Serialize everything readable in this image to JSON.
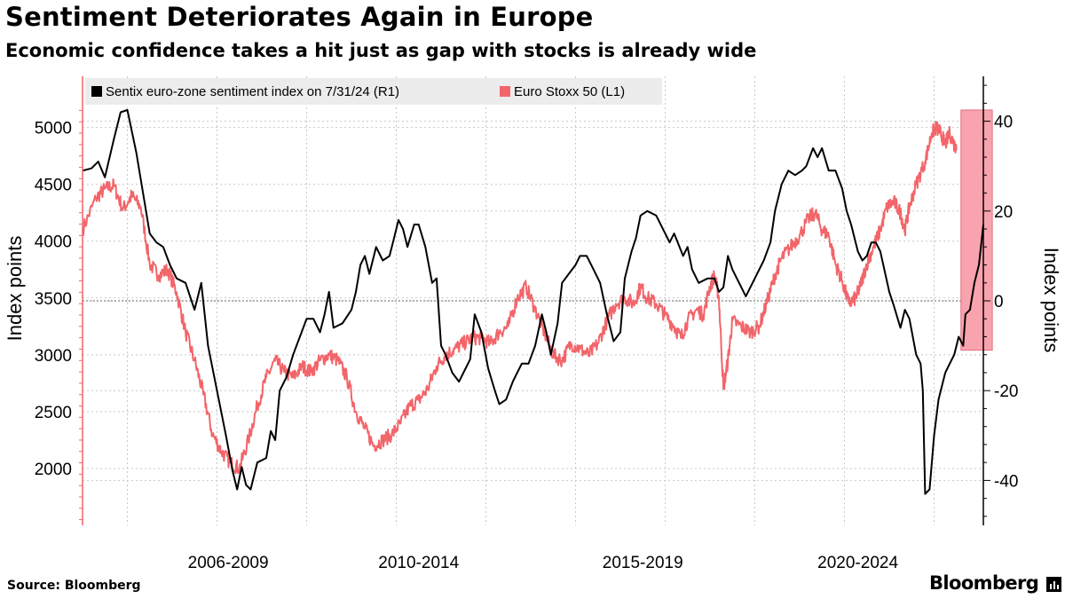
{
  "title": "Sentiment Deteriorates Again in Europe",
  "subtitle": "Economic confidence takes a hit just as gap with stocks is already wide",
  "source": "Source: Bloomberg",
  "brand": "Bloomberg",
  "colors": {
    "sentix": "#000000",
    "stoxx": "#f2656a",
    "highlight": "#f9a3ae",
    "grid": "#c8c8c8",
    "legend_bg": "#ececec"
  },
  "chart_data": {
    "type": "line",
    "x_range": [
      2004.5,
      2024.6
    ],
    "x_tick_labels": [
      {
        "label": "2006-2009",
        "center": 2007.75
      },
      {
        "label": "2010-2014",
        "center": 2012.0
      },
      {
        "label": "2015-2019",
        "center": 2017.0
      },
      {
        "label": "2020-2024",
        "center": 2021.8
      }
    ],
    "x_gridlines": [
      2005.5,
      2007.5,
      2009.5,
      2011.5,
      2013.5,
      2015.5,
      2017.5,
      2019.5,
      2021.5,
      2023.5
    ],
    "left_axis": {
      "label": "Index points",
      "ylim": [
        1500,
        5450
      ],
      "ticks": [
        2000,
        2500,
        3000,
        3500,
        4000,
        4500,
        5000
      ]
    },
    "right_axis": {
      "label": "Index points",
      "ylim": [
        -50,
        50
      ],
      "ticks": [
        -40,
        -20,
        0,
        20,
        40
      ],
      "reference_line": 0
    },
    "legend": [
      {
        "name": "Sentix euro-zone sentiment index on 7/31/24 (R1)",
        "color": "#000000"
      },
      {
        "name": "Euro Stoxx 50 (L1)",
        "color": "#f2656a"
      }
    ],
    "highlight": {
      "x_range": [
        2024.1,
        2024.8
      ],
      "y_range_right": [
        -11,
        42.5
      ]
    },
    "series": [
      {
        "name": "Sentix euro-zone sentiment index on 7/31/24 (R1)",
        "axis": "right",
        "points": [
          [
            2004.5,
            29
          ],
          [
            2004.7,
            29.5
          ],
          [
            2004.85,
            31
          ],
          [
            2005.0,
            27.5
          ],
          [
            2005.2,
            36
          ],
          [
            2005.35,
            42
          ],
          [
            2005.5,
            42.5
          ],
          [
            2005.7,
            33
          ],
          [
            2005.9,
            21
          ],
          [
            2006.0,
            15
          ],
          [
            2006.15,
            13
          ],
          [
            2006.3,
            12
          ],
          [
            2006.45,
            8
          ],
          [
            2006.6,
            5
          ],
          [
            2006.8,
            4
          ],
          [
            2007.0,
            -2
          ],
          [
            2007.15,
            4
          ],
          [
            2007.3,
            -10
          ],
          [
            2007.5,
            -20
          ],
          [
            2007.7,
            -30
          ],
          [
            2007.85,
            -38
          ],
          [
            2007.95,
            -42
          ],
          [
            2008.05,
            -37
          ],
          [
            2008.15,
            -41
          ],
          [
            2008.25,
            -42
          ],
          [
            2008.4,
            -36
          ],
          [
            2008.6,
            -35
          ],
          [
            2008.7,
            -29
          ],
          [
            2008.8,
            -31
          ],
          [
            2008.9,
            -20
          ],
          [
            2009.05,
            -17
          ],
          [
            2009.2,
            -12
          ],
          [
            2009.35,
            -8
          ],
          [
            2009.5,
            -4
          ],
          [
            2009.65,
            -4
          ],
          [
            2009.8,
            -7
          ],
          [
            2009.9,
            -3
          ],
          [
            2010.0,
            2
          ],
          [
            2010.1,
            -6
          ],
          [
            2010.3,
            -5
          ],
          [
            2010.5,
            -2
          ],
          [
            2010.6,
            2
          ],
          [
            2010.7,
            8
          ],
          [
            2010.8,
            10
          ],
          [
            2010.9,
            6
          ],
          [
            2011.05,
            12
          ],
          [
            2011.2,
            9
          ],
          [
            2011.35,
            10
          ],
          [
            2011.45,
            14
          ],
          [
            2011.55,
            18
          ],
          [
            2011.65,
            16
          ],
          [
            2011.75,
            12
          ],
          [
            2011.9,
            17
          ],
          [
            2012.0,
            17
          ],
          [
            2012.15,
            12
          ],
          [
            2012.3,
            4
          ],
          [
            2012.4,
            5
          ],
          [
            2012.5,
            -10
          ],
          [
            2012.6,
            -12
          ],
          [
            2012.75,
            -16
          ],
          [
            2012.9,
            -18
          ],
          [
            2013.0,
            -16
          ],
          [
            2013.15,
            -13
          ],
          [
            2013.25,
            -3
          ],
          [
            2013.4,
            -7
          ],
          [
            2013.55,
            -15
          ],
          [
            2013.7,
            -20
          ],
          [
            2013.8,
            -23
          ],
          [
            2013.95,
            -22
          ],
          [
            2014.1,
            -18
          ],
          [
            2014.2,
            -16
          ],
          [
            2014.3,
            -14
          ],
          [
            2014.45,
            -14
          ],
          [
            2014.6,
            -10
          ],
          [
            2014.75,
            -3
          ],
          [
            2014.85,
            -7
          ],
          [
            2014.95,
            -12
          ],
          [
            2015.1,
            -5
          ],
          [
            2015.2,
            4
          ],
          [
            2015.35,
            6
          ],
          [
            2015.5,
            8
          ],
          [
            2015.6,
            10
          ],
          [
            2015.75,
            10
          ],
          [
            2015.9,
            7
          ],
          [
            2016.05,
            4
          ],
          [
            2016.2,
            -3
          ],
          [
            2016.35,
            -9
          ],
          [
            2016.5,
            -7
          ],
          [
            2016.6,
            5
          ],
          [
            2016.75,
            11
          ],
          [
            2016.85,
            14
          ],
          [
            2016.95,
            19
          ],
          [
            2017.1,
            20
          ],
          [
            2017.3,
            19
          ],
          [
            2017.5,
            15
          ],
          [
            2017.6,
            13
          ],
          [
            2017.7,
            15
          ],
          [
            2017.9,
            10
          ],
          [
            2018.0,
            12
          ],
          [
            2018.1,
            7
          ],
          [
            2018.25,
            4
          ],
          [
            2018.45,
            5
          ],
          [
            2018.6,
            5
          ],
          [
            2018.7,
            2
          ],
          [
            2018.8,
            3
          ],
          [
            2018.9,
            10
          ],
          [
            2019.0,
            7
          ],
          [
            2019.15,
            4
          ],
          [
            2019.3,
            1
          ],
          [
            2019.5,
            5
          ],
          [
            2019.7,
            9
          ],
          [
            2019.85,
            13
          ],
          [
            2019.95,
            20
          ],
          [
            2020.1,
            26
          ],
          [
            2020.25,
            29
          ],
          [
            2020.4,
            28
          ],
          [
            2020.55,
            29
          ],
          [
            2020.65,
            30
          ],
          [
            2020.8,
            34
          ],
          [
            2020.9,
            32
          ],
          [
            2021.0,
            34
          ],
          [
            2021.15,
            29
          ],
          [
            2021.3,
            29
          ],
          [
            2021.45,
            25
          ],
          [
            2021.55,
            20
          ],
          [
            2021.65,
            17
          ],
          [
            2021.8,
            11
          ],
          [
            2021.9,
            9
          ],
          [
            2022.0,
            10
          ],
          [
            2022.1,
            13
          ],
          [
            2022.2,
            13
          ],
          [
            2022.3,
            11
          ],
          [
            2022.5,
            2
          ],
          [
            2022.6,
            -1
          ],
          [
            2022.75,
            -6
          ],
          [
            2022.85,
            -2
          ],
          [
            2022.95,
            -4
          ],
          [
            2023.1,
            -12
          ],
          [
            2023.2,
            -14
          ],
          [
            2023.25,
            -20
          ],
          [
            2023.3,
            -43
          ],
          [
            2023.4,
            -42
          ],
          [
            2023.5,
            -30
          ],
          [
            2023.6,
            -22
          ],
          [
            2023.75,
            -16
          ],
          [
            2023.85,
            -14
          ],
          [
            2023.95,
            -12
          ],
          [
            2024.05,
            -8
          ],
          [
            2024.15,
            -10
          ],
          [
            2024.2,
            -3
          ],
          [
            2024.3,
            -2
          ],
          [
            2024.4,
            4
          ],
          [
            2024.5,
            8
          ],
          [
            2024.6,
            17
          ]
        ]
      },
      {
        "name": "Euro Stoxx 50 (L1)",
        "axis": "left",
        "points": [
          [
            2004.5,
            4100
          ],
          [
            2004.8,
            4380
          ],
          [
            2005.0,
            4460
          ],
          [
            2005.2,
            4490
          ],
          [
            2005.4,
            4280
          ],
          [
            2005.6,
            4400
          ],
          [
            2005.8,
            4300
          ],
          [
            2006.0,
            3800
          ],
          [
            2006.2,
            3700
          ],
          [
            2006.4,
            3750
          ],
          [
            2006.6,
            3550
          ],
          [
            2006.8,
            3200
          ],
          [
            2007.0,
            2950
          ],
          [
            2007.2,
            2650
          ],
          [
            2007.4,
            2300
          ],
          [
            2007.6,
            2150
          ],
          [
            2007.8,
            2050
          ],
          [
            2008.0,
            2000
          ],
          [
            2008.2,
            2250
          ],
          [
            2008.4,
            2550
          ],
          [
            2008.6,
            2800
          ],
          [
            2008.8,
            2950
          ],
          [
            2009.0,
            2850
          ],
          [
            2009.2,
            2800
          ],
          [
            2009.4,
            2900
          ],
          [
            2009.6,
            2850
          ],
          [
            2009.8,
            2950
          ],
          [
            2010.0,
            3000
          ],
          [
            2010.2,
            2950
          ],
          [
            2010.4,
            2800
          ],
          [
            2010.6,
            2500
          ],
          [
            2010.8,
            2350
          ],
          [
            2011.0,
            2200
          ],
          [
            2011.2,
            2250
          ],
          [
            2011.4,
            2300
          ],
          [
            2011.6,
            2400
          ],
          [
            2011.8,
            2550
          ],
          [
            2012.0,
            2600
          ],
          [
            2012.2,
            2700
          ],
          [
            2012.4,
            2900
          ],
          [
            2012.6,
            3000
          ],
          [
            2012.8,
            3050
          ],
          [
            2013.0,
            3100
          ],
          [
            2013.2,
            3150
          ],
          [
            2013.4,
            3150
          ],
          [
            2013.6,
            3100
          ],
          [
            2013.8,
            3200
          ],
          [
            2014.0,
            3250
          ],
          [
            2014.2,
            3500
          ],
          [
            2014.4,
            3600
          ],
          [
            2014.6,
            3400
          ],
          [
            2014.8,
            3200
          ],
          [
            2015.0,
            3000
          ],
          [
            2015.2,
            2950
          ],
          [
            2015.4,
            3100
          ],
          [
            2015.6,
            3050
          ],
          [
            2015.8,
            3000
          ],
          [
            2016.0,
            3100
          ],
          [
            2016.2,
            3300
          ],
          [
            2016.4,
            3450
          ],
          [
            2016.6,
            3500
          ],
          [
            2016.8,
            3450
          ],
          [
            2016.95,
            3600
          ],
          [
            2017.1,
            3500
          ],
          [
            2017.3,
            3450
          ],
          [
            2017.5,
            3350
          ],
          [
            2017.7,
            3250
          ],
          [
            2017.85,
            3150
          ],
          [
            2018.0,
            3300
          ],
          [
            2018.2,
            3400
          ],
          [
            2018.35,
            3350
          ],
          [
            2018.5,
            3600
          ],
          [
            2018.6,
            3700
          ],
          [
            2018.7,
            3500
          ],
          [
            2018.8,
            2700
          ],
          [
            2018.9,
            2950
          ],
          [
            2019.0,
            3300
          ],
          [
            2019.2,
            3250
          ],
          [
            2019.4,
            3200
          ],
          [
            2019.6,
            3250
          ],
          [
            2019.8,
            3500
          ],
          [
            2019.95,
            3700
          ],
          [
            2020.1,
            3850
          ],
          [
            2020.3,
            3950
          ],
          [
            2020.5,
            4050
          ],
          [
            2020.7,
            4200
          ],
          [
            2020.85,
            4250
          ],
          [
            2021.0,
            4100
          ],
          [
            2021.15,
            4050
          ],
          [
            2021.3,
            3800
          ],
          [
            2021.45,
            3650
          ],
          [
            2021.6,
            3450
          ],
          [
            2021.75,
            3500
          ],
          [
            2021.85,
            3600
          ],
          [
            2022.0,
            3800
          ],
          [
            2022.15,
            3950
          ],
          [
            2022.3,
            4100
          ],
          [
            2022.45,
            4300
          ],
          [
            2022.6,
            4350
          ],
          [
            2022.75,
            4250
          ],
          [
            2022.85,
            4100
          ],
          [
            2022.95,
            4300
          ],
          [
            2023.1,
            4500
          ],
          [
            2023.3,
            4700
          ],
          [
            2023.45,
            4950
          ],
          [
            2023.55,
            5000
          ],
          [
            2023.65,
            4950
          ],
          [
            2023.75,
            4850
          ],
          [
            2023.85,
            4950
          ],
          [
            2024.0,
            4800
          ]
        ]
      }
    ]
  }
}
